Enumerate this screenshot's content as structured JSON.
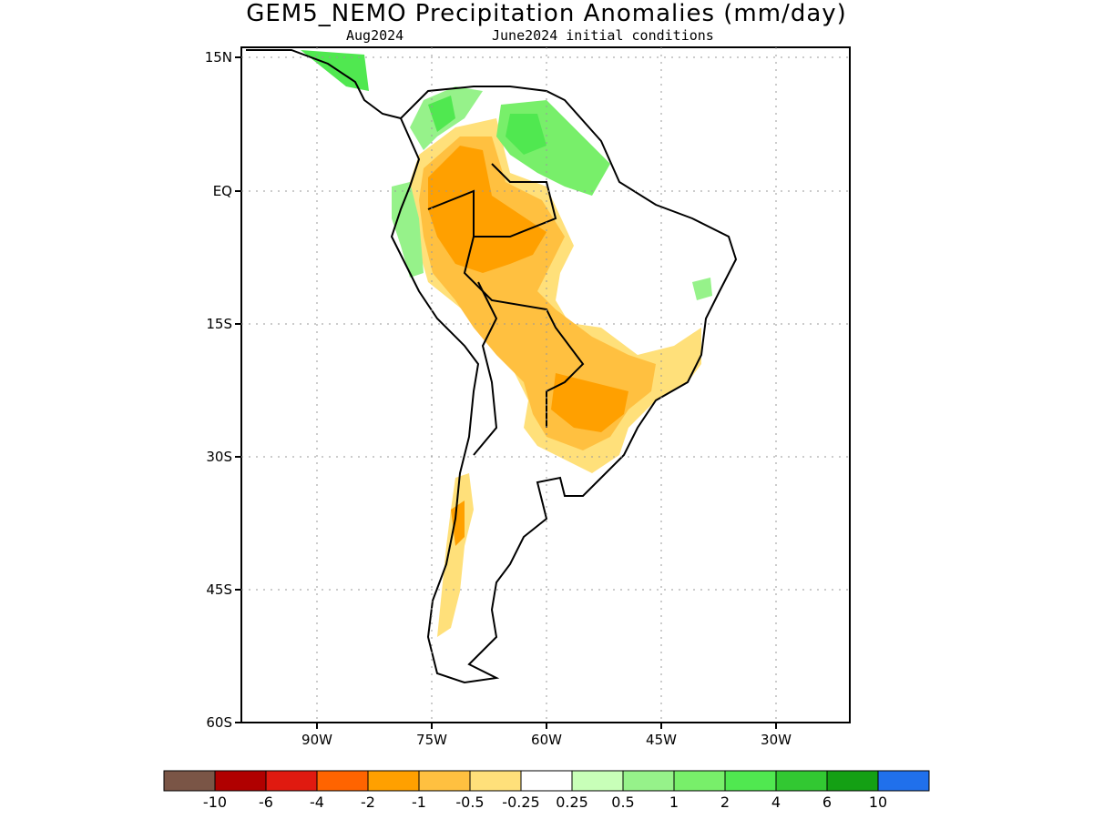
{
  "header": {
    "title": "GEM5_NEMO Precipitation Anomalies (mm/day)",
    "valid_month": "Aug2024",
    "init": "June2024 initial conditions"
  },
  "axes": {
    "lat_labels": [
      "15N",
      "EQ",
      "15S",
      "30S",
      "45S",
      "60S"
    ],
    "lon_labels": [
      "90W",
      "75W",
      "60W",
      "45W",
      "30W"
    ],
    "lon_range": [
      -100,
      -20
    ],
    "lat_range": [
      -60,
      15
    ]
  },
  "colorbar": {
    "colors": [
      "#7a5546",
      "#b00000",
      "#e01a10",
      "#ff6400",
      "#ffa000",
      "#ffc040",
      "#ffe07a",
      "#ffffff",
      "#c8ffb8",
      "#96f28a",
      "#78ef6a",
      "#50e850",
      "#32c832",
      "#14a014",
      "#2070ec"
    ],
    "labels": [
      "-10",
      "-6",
      "-4",
      "-2",
      "-1",
      "-0.5",
      "-0.25",
      "0.25",
      "0.5",
      "1",
      "2",
      "4",
      "6",
      "10"
    ]
  },
  "map": {
    "grid": "dotted"
  }
}
